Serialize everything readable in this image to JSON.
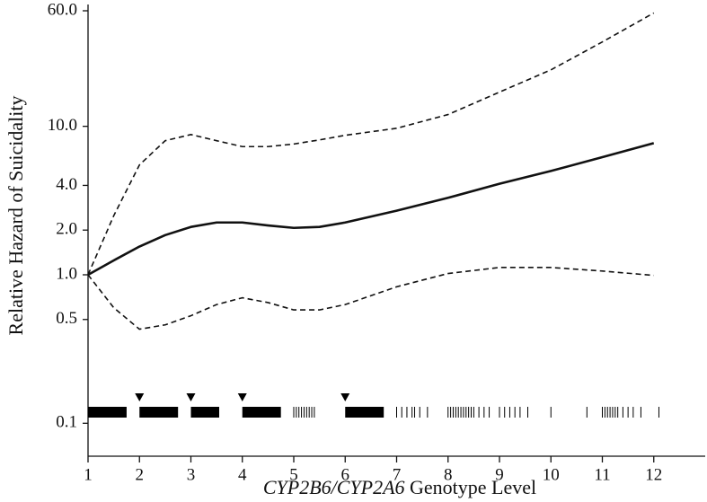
{
  "chart_data": {
    "type": "line",
    "ylabel": "Relative Hazard of Suicidality",
    "xlabel": [
      "CYP2B6/CYP2A6",
      "Genotype Level"
    ],
    "log_y": true,
    "x": [
      1,
      1.5,
      2,
      2.5,
      3,
      3.5,
      4,
      4.5,
      5,
      5.5,
      6,
      7,
      8,
      9,
      10,
      11,
      12
    ],
    "series": [
      {
        "color": "#111111",
        "dash": false,
        "values": [
          1.0,
          1.25,
          1.55,
          1.85,
          2.1,
          2.25,
          2.25,
          2.15,
          2.07,
          2.1,
          2.25,
          2.7,
          3.3,
          4.1,
          5.0,
          6.2,
          7.7
        ]
      },
      {
        "color": "#111111",
        "dash": true,
        "values": [
          1.0,
          2.5,
          5.5,
          8.0,
          8.8,
          8.0,
          7.3,
          7.3,
          7.6,
          8.1,
          8.7,
          9.7,
          12,
          17,
          24,
          37,
          58
        ]
      },
      {
        "color": "#111111",
        "dash": true,
        "values": [
          1.0,
          0.6,
          0.43,
          0.46,
          0.53,
          0.63,
          0.7,
          0.65,
          0.58,
          0.58,
          0.63,
          0.83,
          1.02,
          1.12,
          1.12,
          1.06,
          0.99
        ]
      }
    ],
    "markers": [
      2,
      3,
      4,
      6
    ],
    "rug_blocks": [
      [
        1,
        1.75
      ],
      [
        2,
        2.75
      ],
      [
        3,
        3.55
      ],
      [
        4,
        4.75
      ],
      [
        6,
        6.75
      ]
    ],
    "rug_ticks": [
      5.0,
      5.05,
      5.1,
      5.15,
      5.2,
      5.25,
      5.3,
      5.35,
      5.4,
      7.0,
      7.1,
      7.2,
      7.3,
      7.35,
      7.45,
      7.6,
      8.0,
      8.05,
      8.1,
      8.15,
      8.2,
      8.25,
      8.3,
      8.35,
      8.4,
      8.45,
      8.5,
      8.6,
      8.7,
      8.8,
      9.0,
      9.1,
      9.2,
      9.3,
      9.4,
      9.55,
      10.0,
      10.7,
      11.0,
      11.05,
      11.1,
      11.15,
      11.2,
      11.25,
      11.3,
      11.4,
      11.5,
      11.6,
      11.75,
      12.1
    ],
    "xlim": [
      1,
      13
    ],
    "ylim": [
      0.06,
      60
    ],
    "xticks": [
      1,
      2,
      3,
      4,
      5,
      6,
      7,
      8,
      9,
      10,
      11,
      12
    ],
    "yticks": [
      0.1,
      0.5,
      {
        "value": 1,
        "label": "1.0"
      },
      {
        "value": 2,
        "label": "2.0"
      },
      {
        "value": 4,
        "label": "4.0"
      },
      {
        "value": 10,
        "label": "10.0"
      },
      {
        "value": 60,
        "label": "60.0"
      }
    ]
  }
}
